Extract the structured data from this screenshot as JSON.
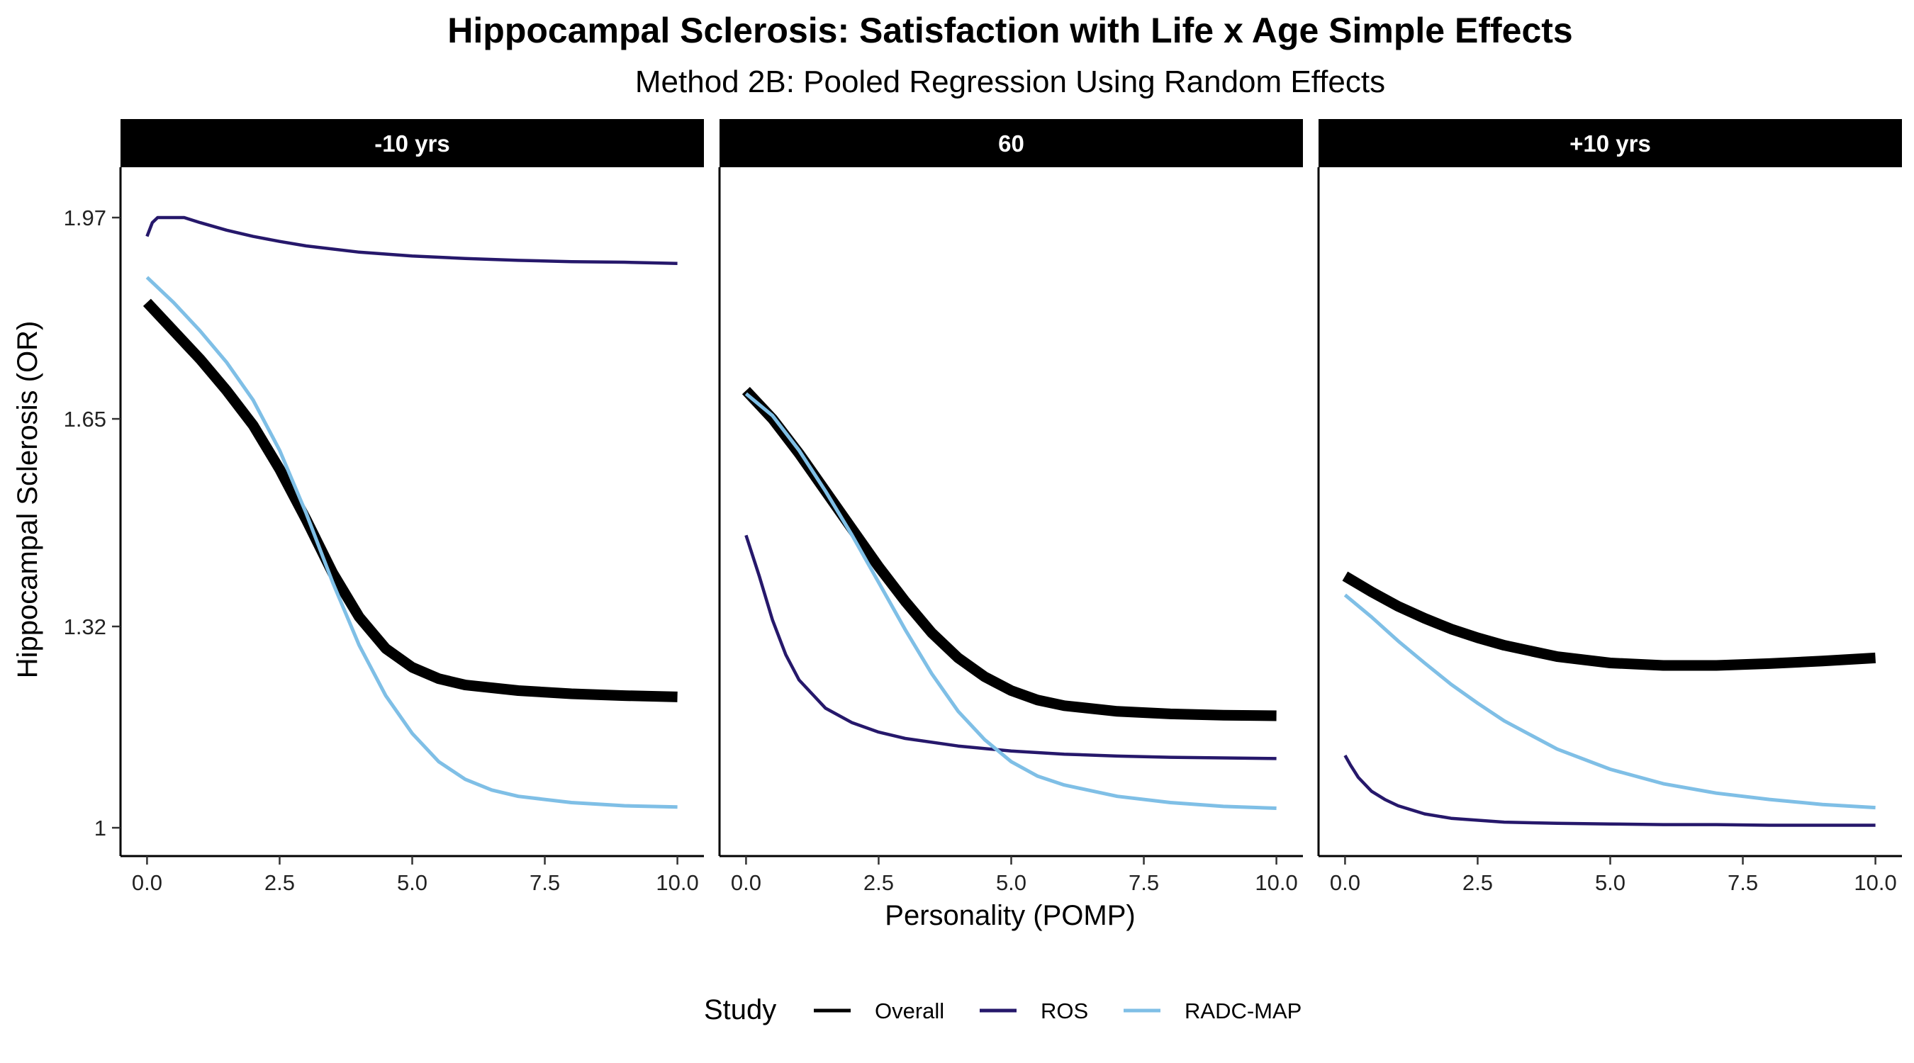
{
  "chart_data": {
    "type": "line",
    "title": "Hippocampal Sclerosis: Satisfaction with Life x Age Simple Effects",
    "subtitle": "Method 2B: Pooled Regression Using Random Effects",
    "xlabel": "Personality (POMP)",
    "ylabel": "Hippocampal Sclerosis (OR)",
    "x_ticks": [
      "0.0",
      "2.5",
      "5.0",
      "7.5",
      "10.0"
    ],
    "x_tick_values": [
      0,
      2.5,
      5,
      7.5,
      10
    ],
    "y_ticks": [
      "1",
      "1.32",
      "1.65",
      "1.97"
    ],
    "y_tick_values": [
      1,
      1.32,
      1.65,
      1.97
    ],
    "xlim": [
      -0.5,
      10.5
    ],
    "ylim": [
      0.955,
      2.05
    ],
    "grid": false,
    "legend": {
      "title": "Study",
      "position": "bottom",
      "entries": [
        {
          "name": "Overall",
          "color": "#000000"
        },
        {
          "name": "ROS",
          "color": "#26186b"
        },
        {
          "name": "RADC-MAP",
          "color": "#7fbfe6"
        }
      ]
    },
    "facets": [
      {
        "label": "-10 yrs",
        "series": [
          {
            "name": "Overall",
            "x": [
              0,
              0.5,
              1,
              1.5,
              2,
              2.5,
              3,
              3.5,
              4,
              4.5,
              5,
              5.5,
              6,
              7,
              8,
              9,
              10
            ],
            "y": [
              1.835,
              1.79,
              1.745,
              1.695,
              1.64,
              1.57,
              1.49,
              1.405,
              1.335,
              1.285,
              1.255,
              1.237,
              1.227,
              1.218,
              1.213,
              1.21,
              1.208
            ]
          },
          {
            "name": "ROS",
            "x": [
              0,
              0.1,
              0.2,
              0.7,
              1,
              1.5,
              2,
              2.5,
              3,
              4,
              5,
              6,
              7,
              8,
              9,
              10
            ],
            "y": [
              1.94,
              1.962,
              1.97,
              1.97,
              1.962,
              1.95,
              1.94,
              1.932,
              1.925,
              1.915,
              1.909,
              1.905,
              1.902,
              1.9,
              1.899,
              1.897
            ]
          },
          {
            "name": "RADC-MAP",
            "x": [
              0,
              0.5,
              1,
              1.5,
              2,
              2.5,
              3,
              3.5,
              4,
              4.5,
              5,
              5.5,
              6,
              6.5,
              7,
              8,
              9,
              10
            ],
            "y": [
              1.875,
              1.835,
              1.79,
              1.74,
              1.68,
              1.6,
              1.5,
              1.39,
              1.29,
              1.21,
              1.15,
              1.105,
              1.077,
              1.06,
              1.05,
              1.04,
              1.035,
              1.033
            ]
          }
        ]
      },
      {
        "label": "60",
        "series": [
          {
            "name": "Overall",
            "x": [
              0,
              0.5,
              1,
              1.5,
              2,
              2.5,
              3,
              3.5,
              4,
              4.5,
              5,
              5.5,
              6,
              7,
              8,
              9,
              10
            ],
            "y": [
              1.695,
              1.65,
              1.595,
              1.535,
              1.475,
              1.415,
              1.36,
              1.31,
              1.27,
              1.24,
              1.218,
              1.203,
              1.194,
              1.185,
              1.181,
              1.179,
              1.178
            ]
          },
          {
            "name": "ROS",
            "x": [
              0,
              0.25,
              0.5,
              0.75,
              1,
              1.5,
              2,
              2.5,
              3,
              4,
              5,
              6,
              7,
              8,
              9,
              10
            ],
            "y": [
              1.465,
              1.4,
              1.33,
              1.275,
              1.235,
              1.19,
              1.167,
              1.152,
              1.142,
              1.13,
              1.122,
              1.117,
              1.114,
              1.112,
              1.111,
              1.11
            ]
          },
          {
            "name": "RADC-MAP",
            "x": [
              0,
              0.5,
              1,
              1.5,
              2,
              2.5,
              3,
              3.5,
              4,
              4.5,
              5,
              5.5,
              6,
              7,
              8,
              9,
              10
            ],
            "y": [
              1.69,
              1.655,
              1.6,
              1.535,
              1.465,
              1.39,
              1.315,
              1.245,
              1.185,
              1.14,
              1.105,
              1.082,
              1.068,
              1.05,
              1.04,
              1.034,
              1.031
            ]
          }
        ]
      },
      {
        "label": "+10 yrs",
        "series": [
          {
            "name": "Overall",
            "x": [
              0,
              0.5,
              1,
              1.5,
              2,
              2.5,
              3,
              4,
              5,
              6,
              7,
              8,
              9,
              10
            ],
            "y": [
              1.4,
              1.375,
              1.352,
              1.333,
              1.316,
              1.302,
              1.29,
              1.272,
              1.262,
              1.258,
              1.258,
              1.261,
              1.265,
              1.27
            ]
          },
          {
            "name": "ROS",
            "x": [
              0,
              0.1,
              0.25,
              0.5,
              0.75,
              1,
              1.5,
              2,
              3,
              4,
              5,
              6,
              7,
              8,
              9,
              10
            ],
            "y": [
              1.115,
              1.1,
              1.08,
              1.058,
              1.045,
              1.035,
              1.022,
              1.015,
              1.009,
              1.007,
              1.006,
              1.005,
              1.005,
              1.004,
              1.004,
              1.004
            ]
          },
          {
            "name": "RADC-MAP",
            "x": [
              0,
              0.5,
              1,
              1.5,
              2,
              2.5,
              3,
              4,
              5,
              6,
              7,
              8,
              9,
              10
            ],
            "y": [
              1.37,
              1.335,
              1.297,
              1.262,
              1.228,
              1.198,
              1.17,
              1.125,
              1.093,
              1.07,
              1.055,
              1.045,
              1.037,
              1.032
            ]
          }
        ]
      }
    ]
  }
}
